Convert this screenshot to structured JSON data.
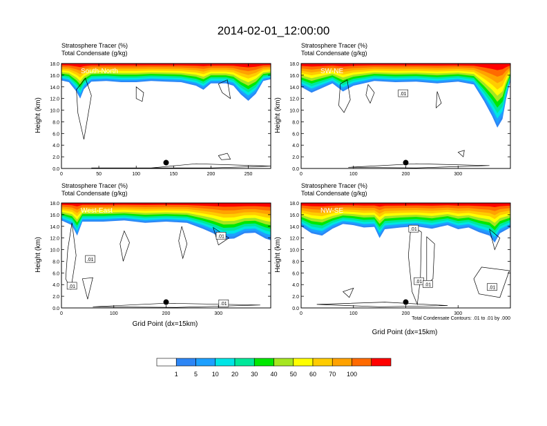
{
  "title": "2014-02-01_12:00:00",
  "chart_data": [
    {
      "type": "heatmap",
      "panel_label": "South-North",
      "label_stratosphere": "Stratosphere Tracer   (%)",
      "label_condensate": "Total Condensate   (g/kg)",
      "ylabel": "Height (km)",
      "xlabel": "",
      "xlim": [
        0,
        280
      ],
      "ylim": [
        0,
        18
      ],
      "x_ticks": [
        0,
        50,
        100,
        150,
        200,
        250
      ],
      "y_ticks": [
        0,
        2,
        4,
        6,
        8,
        10,
        12,
        14,
        16,
        18
      ],
      "marker_x": 140,
      "tracer_top_km": [
        [
          0,
          15.1
        ],
        [
          10,
          14.8
        ],
        [
          20,
          13.2
        ],
        [
          25,
          12.0
        ],
        [
          30,
          13.6
        ],
        [
          40,
          14.9
        ],
        [
          60,
          15.0
        ],
        [
          80,
          14.8
        ],
        [
          100,
          14.8
        ],
        [
          120,
          15.0
        ],
        [
          140,
          14.9
        ],
        [
          160,
          14.8
        ],
        [
          180,
          14.2
        ],
        [
          190,
          13.5
        ],
        [
          200,
          14.6
        ],
        [
          220,
          14.6
        ],
        [
          230,
          14.2
        ],
        [
          240,
          12.7
        ],
        [
          250,
          11.6
        ],
        [
          260,
          12.8
        ],
        [
          270,
          15.0
        ],
        [
          280,
          15.3
        ]
      ],
      "contour_labels": []
    },
    {
      "type": "heatmap",
      "panel_label": "SW-NE",
      "label_stratosphere": "Stratosphere Tracer   (%)",
      "label_condensate": "Total Condensate   (g/kg)",
      "ylabel": "Height (km)",
      "xlabel": "",
      "xlim": [
        0,
        400
      ],
      "ylim": [
        0,
        18
      ],
      "x_ticks": [
        0,
        100,
        200,
        300
      ],
      "y_ticks": [
        0,
        2,
        4,
        6,
        8,
        10,
        12,
        14,
        16,
        18
      ],
      "marker_x": 200,
      "tracer_top_km": [
        [
          0,
          14.0
        ],
        [
          20,
          13.0
        ],
        [
          40,
          13.8
        ],
        [
          60,
          14.6
        ],
        [
          80,
          13.2
        ],
        [
          100,
          14.2
        ],
        [
          140,
          15.0
        ],
        [
          180,
          14.8
        ],
        [
          220,
          14.9
        ],
        [
          260,
          14.6
        ],
        [
          300,
          14.9
        ],
        [
          330,
          14.4
        ],
        [
          350,
          11.5
        ],
        [
          365,
          9.0
        ],
        [
          375,
          7.0
        ],
        [
          385,
          8.5
        ],
        [
          392,
          12.0
        ],
        [
          400,
          15.0
        ]
      ],
      "contour_labels": [
        ".01"
      ]
    },
    {
      "type": "heatmap",
      "panel_label": "West-East",
      "label_stratosphere": "Stratosphere Tracer   (%)",
      "label_condensate": "Total Condensate   (g/kg)",
      "ylabel": "Height (km)",
      "xlabel": "Grid Point (dx=15km)",
      "xlim": [
        0,
        400
      ],
      "ylim": [
        0,
        18
      ],
      "x_ticks": [
        0,
        100,
        200,
        300
      ],
      "y_ticks": [
        0,
        2,
        4,
        6,
        8,
        10,
        12,
        14,
        16,
        18
      ],
      "marker_x": 200,
      "tracer_top_km": [
        [
          0,
          15.0
        ],
        [
          20,
          14.2
        ],
        [
          30,
          12.4
        ],
        [
          40,
          14.8
        ],
        [
          80,
          14.8
        ],
        [
          120,
          15.0
        ],
        [
          160,
          14.6
        ],
        [
          200,
          14.8
        ],
        [
          240,
          14.6
        ],
        [
          270,
          13.6
        ],
        [
          290,
          12.8
        ],
        [
          310,
          11.8
        ],
        [
          330,
          11.9
        ],
        [
          350,
          12.8
        ],
        [
          370,
          12.9
        ],
        [
          390,
          11.9
        ],
        [
          400,
          11.6
        ]
      ],
      "contour_labels": [
        ".01",
        ".01",
        ".01",
        ".01"
      ]
    },
    {
      "type": "heatmap",
      "panel_label": "NW-SE",
      "label_stratosphere": "Stratosphere Tracer   (%)",
      "label_condensate": "Total Condensate   (g/kg)",
      "ylabel": "Height (km)",
      "xlabel": "Grid Point (dx=15km)",
      "xlim": [
        0,
        400
      ],
      "ylim": [
        0,
        18
      ],
      "x_ticks": [
        0,
        100,
        200,
        300
      ],
      "y_ticks": [
        0,
        2,
        4,
        6,
        8,
        10,
        12,
        14,
        16,
        18
      ],
      "marker_x": 200,
      "contour_note": "Total Condensate Contours: .01 to .01 by .000",
      "tracer_top_km": [
        [
          0,
          14.0
        ],
        [
          20,
          12.8
        ],
        [
          40,
          12.4
        ],
        [
          60,
          13.6
        ],
        [
          80,
          14.4
        ],
        [
          100,
          14.2
        ],
        [
          120,
          13.8
        ],
        [
          140,
          13.9
        ],
        [
          150,
          12.0
        ],
        [
          160,
          13.5
        ],
        [
          190,
          13.8
        ],
        [
          220,
          14.0
        ],
        [
          250,
          13.6
        ],
        [
          280,
          14.2
        ],
        [
          300,
          13.5
        ],
        [
          320,
          13.8
        ],
        [
          340,
          13.0
        ],
        [
          360,
          12.4
        ],
        [
          370,
          11.2
        ],
        [
          380,
          12.8
        ],
        [
          400,
          13.8
        ]
      ],
      "contour_labels": [
        ".01",
        ".01",
        ".01",
        ".01"
      ]
    }
  ],
  "colorbar": {
    "labels": [
      "1",
      "5",
      "10",
      "20",
      "30",
      "40",
      "50",
      "60",
      "70",
      "100"
    ],
    "colors": [
      "#ffffff",
      "#2d86f5",
      "#1ea0ff",
      "#00e5e5",
      "#00e89a",
      "#00e800",
      "#a6e621",
      "#ffff00",
      "#ffcc00",
      "#ffa200",
      "#ff6a00",
      "#ff0000"
    ]
  }
}
